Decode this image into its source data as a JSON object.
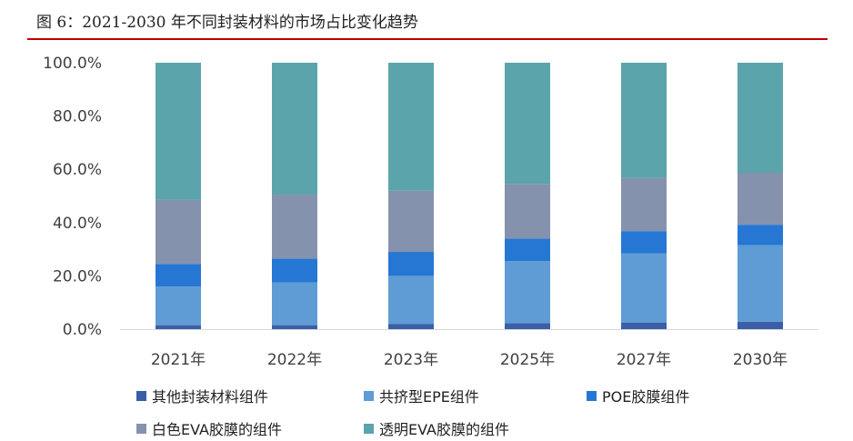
{
  "title": "图 6：2021-2030 年不同封装材料的市场占比变化趋势",
  "colors": {
    "title_rule": "#c00000",
    "axis": "#d9d9d9"
  },
  "chart_data": {
    "type": "bar",
    "stacked": true,
    "categories": [
      "2021年",
      "2022年",
      "2023年",
      "2025年",
      "2027年",
      "2030年"
    ],
    "y_ticks": [
      "0.0%",
      "20.0%",
      "40.0%",
      "60.0%",
      "80.0%",
      "100.0%"
    ],
    "ylim": [
      0,
      100
    ],
    "grid": false,
    "legend_position": "bottom",
    "series": [
      {
        "name": "其他封装材料组件",
        "color": "#3a5fa8",
        "values": [
          1.5,
          1.5,
          2.0,
          2.2,
          2.5,
          2.8
        ]
      },
      {
        "name": "共挤型EPE组件",
        "color": "#5f9bd4",
        "values": [
          14.5,
          16.0,
          18.0,
          23.3,
          26.0,
          28.7
        ]
      },
      {
        "name": "POE胶膜组件",
        "color": "#2677d4",
        "values": [
          8.5,
          9.0,
          9.0,
          8.5,
          8.3,
          7.7
        ]
      },
      {
        "name": "白色EVA胶膜的组件",
        "color": "#8592ae",
        "values": [
          24.0,
          24.0,
          23.0,
          20.5,
          20.0,
          19.5
        ]
      },
      {
        "name": "透明EVA胶膜的组件",
        "color": "#5ba4ac",
        "values": [
          51.5,
          49.5,
          48.0,
          45.5,
          43.2,
          41.3
        ]
      }
    ]
  }
}
